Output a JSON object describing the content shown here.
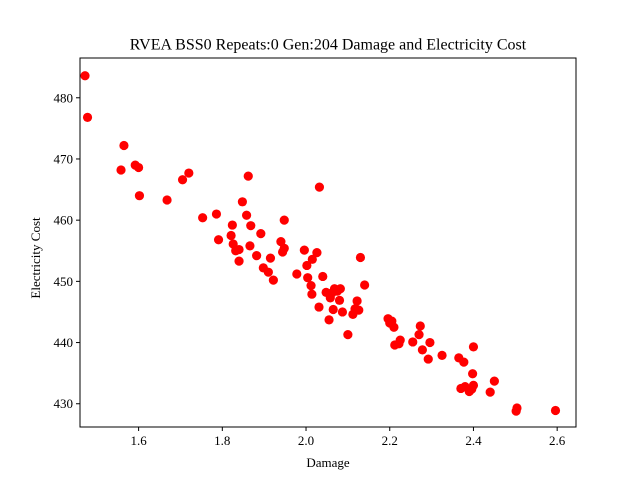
{
  "chart_data": {
    "type": "scatter",
    "title": "RVEA BSS0 Repeats:0 Gen:204 Damage and Electricity Cost",
    "xlabel": "Damage",
    "ylabel": "Electricity Cost",
    "xlim": [
      1.46,
      2.645
    ],
    "ylim": [
      426.2,
      486.5
    ],
    "xticks": [
      1.6,
      1.8,
      2.0,
      2.2,
      2.4,
      2.6
    ],
    "xtick_labels": [
      "1.6",
      "1.8",
      "2.0",
      "2.2",
      "2.4",
      "2.6"
    ],
    "yticks": [
      430,
      440,
      450,
      460,
      470,
      480
    ],
    "ytick_labels": [
      "430",
      "440",
      "450",
      "460",
      "470",
      "480"
    ],
    "grid": false,
    "marker_color": "#ff0000",
    "series": [
      {
        "points": [
          [
            1.472,
            483.6
          ],
          [
            1.478,
            476.8
          ],
          [
            1.558,
            468.2
          ],
          [
            1.565,
            472.2
          ],
          [
            1.592,
            469.0
          ],
          [
            1.6,
            468.6
          ],
          [
            1.602,
            464.0
          ],
          [
            1.668,
            463.3
          ],
          [
            1.705,
            466.6
          ],
          [
            1.72,
            467.7
          ],
          [
            1.753,
            460.4
          ],
          [
            1.786,
            461.0
          ],
          [
            1.791,
            456.8
          ],
          [
            1.821,
            457.5
          ],
          [
            1.824,
            459.2
          ],
          [
            1.826,
            456.1
          ],
          [
            1.832,
            455.0
          ],
          [
            1.84,
            453.3
          ],
          [
            1.84,
            455.2
          ],
          [
            1.848,
            463.0
          ],
          [
            1.858,
            460.8
          ],
          [
            1.862,
            467.2
          ],
          [
            1.866,
            455.8
          ],
          [
            1.868,
            459.1
          ],
          [
            1.882,
            454.2
          ],
          [
            1.892,
            457.8
          ],
          [
            1.898,
            452.2
          ],
          [
            1.91,
            451.5
          ],
          [
            1.915,
            453.8
          ],
          [
            1.922,
            450.2
          ],
          [
            1.94,
            456.5
          ],
          [
            1.944,
            454.8
          ],
          [
            1.948,
            455.4
          ],
          [
            1.948,
            460.0
          ],
          [
            1.978,
            451.2
          ],
          [
            1.996,
            455.1
          ],
          [
            2.002,
            452.6
          ],
          [
            2.004,
            450.6
          ],
          [
            2.012,
            449.3
          ],
          [
            2.014,
            447.9
          ],
          [
            2.015,
            453.6
          ],
          [
            2.026,
            454.7
          ],
          [
            2.031,
            445.8
          ],
          [
            2.032,
            465.4
          ],
          [
            2.04,
            450.8
          ],
          [
            2.048,
            448.2
          ],
          [
            2.055,
            443.7
          ],
          [
            2.058,
            447.3
          ],
          [
            2.062,
            448.1
          ],
          [
            2.065,
            445.4
          ],
          [
            2.068,
            448.8
          ],
          [
            2.075,
            448.4
          ],
          [
            2.08,
            446.9
          ],
          [
            2.082,
            448.8
          ],
          [
            2.087,
            445.0
          ],
          [
            2.1,
            441.3
          ],
          [
            2.112,
            444.6
          ],
          [
            2.117,
            445.5
          ],
          [
            2.122,
            446.8
          ],
          [
            2.126,
            445.3
          ],
          [
            2.13,
            453.9
          ],
          [
            2.14,
            449.4
          ],
          [
            2.196,
            443.9
          ],
          [
            2.2,
            443.2
          ],
          [
            2.205,
            443.5
          ],
          [
            2.21,
            442.5
          ],
          [
            2.212,
            439.6
          ],
          [
            2.222,
            439.8
          ],
          [
            2.225,
            440.4
          ],
          [
            2.255,
            440.1
          ],
          [
            2.27,
            441.3
          ],
          [
            2.273,
            442.7
          ],
          [
            2.278,
            438.8
          ],
          [
            2.292,
            437.3
          ],
          [
            2.296,
            440.0
          ],
          [
            2.325,
            437.9
          ],
          [
            2.365,
            437.5
          ],
          [
            2.37,
            432.5
          ],
          [
            2.377,
            436.8
          ],
          [
            2.38,
            432.8
          ],
          [
            2.39,
            432.0
          ],
          [
            2.396,
            432.4
          ],
          [
            2.398,
            434.9
          ],
          [
            2.4,
            433.0
          ],
          [
            2.4,
            439.3
          ],
          [
            2.44,
            431.9
          ],
          [
            2.45,
            433.7
          ],
          [
            2.502,
            428.8
          ],
          [
            2.504,
            429.3
          ],
          [
            2.596,
            428.9
          ]
        ]
      }
    ]
  }
}
